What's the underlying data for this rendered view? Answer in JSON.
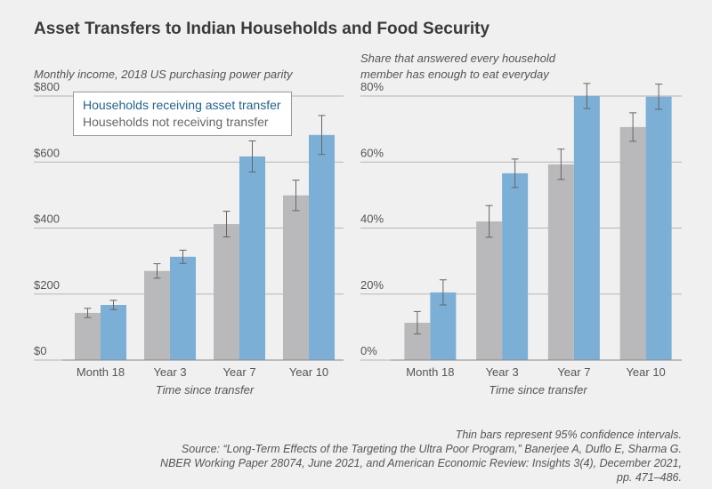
{
  "title": "Asset Transfers to Indian Households and Food Security",
  "chart_data": [
    {
      "type": "bar",
      "ylabel": [
        "Monthly income, 2018 US purchasing power parity"
      ],
      "xlabel": "Time since transfer",
      "categories": [
        "Month 18",
        "Year 3",
        "Year 7",
        "Year 10"
      ],
      "series": [
        {
          "name": "Households not receiving transfer",
          "color": "#b9b9bb",
          "values": [
            143,
            270,
            412,
            499
          ],
          "errors": [
            14,
            22,
            39,
            46
          ]
        },
        {
          "name": "Households receiving asset transfer",
          "color": "#7bafd6",
          "values": [
            167,
            313,
            617,
            682
          ],
          "errors": [
            14,
            20,
            47,
            59
          ]
        }
      ],
      "ylim": [
        0,
        800
      ],
      "yticks": [
        {
          "value": 0,
          "label": "$0"
        },
        {
          "value": 200,
          "label": "$200"
        },
        {
          "value": 400,
          "label": "$400"
        },
        {
          "value": 600,
          "label": "$600"
        },
        {
          "value": 800,
          "label": "$800"
        }
      ],
      "grid": true,
      "legend": "upper left"
    },
    {
      "type": "bar",
      "ylabel": [
        "Share that answered every household",
        "member has enough to eat everyday"
      ],
      "xlabel": "Time since transfer",
      "categories": [
        "Month 18",
        "Year 3",
        "Year 7",
        "Year 10"
      ],
      "series": [
        {
          "color": "#b9b9bb",
          "values": [
            11.3,
            42,
            59.3,
            70.6
          ],
          "errors": [
            3.4,
            4.8,
            4.6,
            4.3
          ]
        },
        {
          "color": "#7bafd6",
          "values": [
            20.5,
            56.6,
            80,
            79.8
          ],
          "errors": [
            3.8,
            4.3,
            3.8,
            3.8
          ]
        }
      ],
      "ylim": [
        0,
        80
      ],
      "yticks": [
        {
          "value": 0,
          "label": "0%"
        },
        {
          "value": 20,
          "label": "20%"
        },
        {
          "value": 40,
          "label": "40%"
        },
        {
          "value": 60,
          "label": "60%"
        },
        {
          "value": 80,
          "label": "80%"
        }
      ],
      "grid": true
    }
  ],
  "notes": [
    "Thin bars represent 95% confidence intervals.",
    "Source: “Long-Term Effects of the Targeting the Ultra Poor Program,” Banerjee A, Duflo E, Sharma G. NBER Working Paper 28074, June 2021, and American Economic Review: Insights 3(4), December 2021, pp. 471–486."
  ]
}
